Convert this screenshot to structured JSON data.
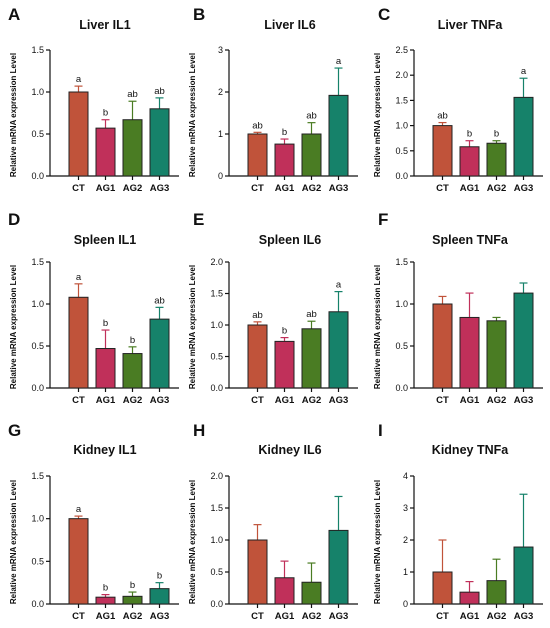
{
  "ylabel": "Relative mRNA expression Level",
  "categories": [
    "CT",
    "AG1",
    "AG2",
    "AG3"
  ],
  "colors": {
    "CT": "#c0533a",
    "AG1": "#c0305a",
    "AG2": "#4a7c23",
    "AG3": "#16826a",
    "axis": "#111111",
    "sig": "#c0533a"
  },
  "chart_data": [
    {
      "letter": "A",
      "title": "Liver IL1",
      "type": "bar",
      "categories": [
        "CT",
        "AG1",
        "AG2",
        "AG3"
      ],
      "values": [
        1.0,
        0.57,
        0.67,
        0.8
      ],
      "errors": [
        0.07,
        0.1,
        0.22,
        0.13
      ],
      "ylim": [
        0,
        1.5
      ],
      "yticks": [
        "0.0",
        "0.5",
        "1.0",
        "1.5"
      ],
      "sig": [
        "a",
        "b",
        "ab",
        "ab"
      ]
    },
    {
      "letter": "B",
      "title": "Liver IL6",
      "type": "bar",
      "categories": [
        "CT",
        "AG1",
        "AG2",
        "AG3"
      ],
      "values": [
        1.0,
        0.76,
        1.0,
        1.92
      ],
      "errors": [
        0.04,
        0.12,
        0.27,
        0.65
      ],
      "ylim": [
        0,
        3
      ],
      "yticks": [
        "0",
        "1",
        "2",
        "3"
      ],
      "sig": [
        "ab",
        "b",
        "ab",
        "a"
      ]
    },
    {
      "letter": "C",
      "title": "Liver TNFa",
      "type": "bar",
      "categories": [
        "CT",
        "AG1",
        "AG2",
        "AG3"
      ],
      "values": [
        1.0,
        0.58,
        0.65,
        1.56
      ],
      "errors": [
        0.06,
        0.12,
        0.05,
        0.38
      ],
      "ylim": [
        0,
        2.5
      ],
      "yticks": [
        "0.0",
        "0.5",
        "1.0",
        "1.5",
        "2.0",
        "2.5"
      ],
      "sig": [
        "ab",
        "b",
        "b",
        "a"
      ]
    },
    {
      "letter": "D",
      "title": "Spleen IL1",
      "type": "bar",
      "categories": [
        "CT",
        "AG1",
        "AG2",
        "AG3"
      ],
      "values": [
        1.08,
        0.47,
        0.41,
        0.82
      ],
      "errors": [
        0.16,
        0.22,
        0.08,
        0.14
      ],
      "ylim": [
        0,
        1.5
      ],
      "yticks": [
        "0.0",
        "0.5",
        "1.0",
        "1.5"
      ],
      "sig": [
        "a",
        "b",
        "b",
        "ab"
      ]
    },
    {
      "letter": "E",
      "title": "Spleen IL6",
      "type": "bar",
      "categories": [
        "CT",
        "AG1",
        "AG2",
        "AG3"
      ],
      "values": [
        1.0,
        0.74,
        0.94,
        1.21
      ],
      "errors": [
        0.05,
        0.06,
        0.12,
        0.32
      ],
      "ylim": [
        0,
        2.0
      ],
      "yticks": [
        "0.0",
        "0.5",
        "1.0",
        "1.5",
        "2.0"
      ],
      "sig": [
        "ab",
        "b",
        "ab",
        "a"
      ]
    },
    {
      "letter": "F",
      "title": "Spleen TNFa",
      "type": "bar",
      "categories": [
        "CT",
        "AG1",
        "AG2",
        "AG3"
      ],
      "values": [
        1.0,
        0.84,
        0.8,
        1.13
      ],
      "errors": [
        0.09,
        0.29,
        0.04,
        0.12
      ],
      "ylim": [
        0,
        1.5
      ],
      "yticks": [
        "0.0",
        "0.5",
        "1.0",
        "1.5"
      ],
      "sig": [
        "",
        "",
        "",
        ""
      ]
    },
    {
      "letter": "G",
      "title": "Kidney IL1",
      "type": "bar",
      "categories": [
        "CT",
        "AG1",
        "AG2",
        "AG3"
      ],
      "values": [
        1.0,
        0.08,
        0.09,
        0.18
      ],
      "errors": [
        0.03,
        0.03,
        0.05,
        0.07
      ],
      "ylim": [
        0,
        1.5
      ],
      "yticks": [
        "0.0",
        "0.5",
        "1.0",
        "1.5"
      ],
      "sig": [
        "a",
        "b",
        "b",
        "b"
      ]
    },
    {
      "letter": "H",
      "title": "Kidney IL6",
      "type": "bar",
      "categories": [
        "CT",
        "AG1",
        "AG2",
        "AG3"
      ],
      "values": [
        1.0,
        0.41,
        0.34,
        1.15
      ],
      "errors": [
        0.24,
        0.26,
        0.3,
        0.53
      ],
      "ylim": [
        0,
        2.0
      ],
      "yticks": [
        "0.0",
        "0.5",
        "1.0",
        "1.5",
        "2.0"
      ],
      "sig": [
        "",
        "",
        "",
        ""
      ]
    },
    {
      "letter": "I",
      "title": "Kidney TNFa",
      "type": "bar",
      "categories": [
        "CT",
        "AG1",
        "AG2",
        "AG3"
      ],
      "values": [
        1.0,
        0.37,
        0.73,
        1.78
      ],
      "errors": [
        1.0,
        0.33,
        0.67,
        1.65
      ],
      "ylim": [
        0,
        4
      ],
      "yticks": [
        "0",
        "1",
        "2",
        "3",
        "4"
      ],
      "sig": [
        "",
        "",
        "",
        ""
      ]
    }
  ]
}
